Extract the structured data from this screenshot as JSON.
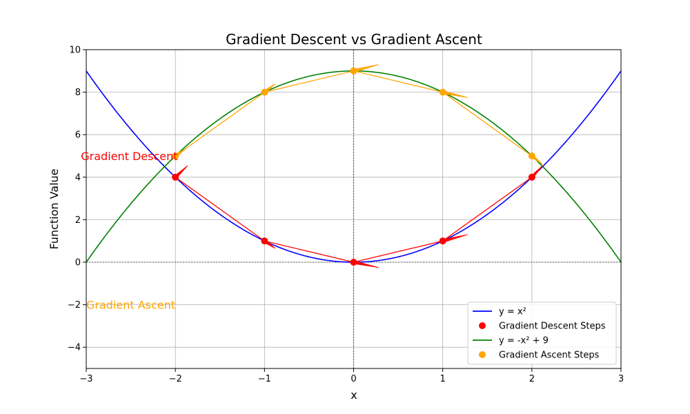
{
  "chart_data": {
    "type": "line",
    "title": "Gradient Descent vs Gradient Ascent",
    "xlabel": "x",
    "ylabel": "Function Value",
    "xlim": [
      -3,
      3
    ],
    "ylim": [
      -5,
      10
    ],
    "x_ticks": [
      -3,
      -2,
      -1,
      0,
      1,
      2,
      3
    ],
    "y_ticks": [
      -4,
      -2,
      0,
      2,
      4,
      6,
      8,
      10
    ],
    "grid": true,
    "legend_position": "lower-right",
    "colors": {
      "descent_curve": "#0000ff",
      "descent_points": "#ff0000",
      "ascent_curve": "#008000",
      "ascent_points": "#ffa500"
    },
    "curves": [
      {
        "name": "y = x²",
        "function": "x^2",
        "color": "#0000ff"
      },
      {
        "name": "y = -x² + 9",
        "function": "-x^2 + 9",
        "color": "#008000"
      }
    ],
    "scatter": [
      {
        "name": "Gradient Descent Steps",
        "color": "#ff0000",
        "x": [
          -2,
          -1,
          0,
          1,
          2
        ],
        "y": [
          4,
          1,
          0,
          1,
          4
        ]
      },
      {
        "name": "Gradient Ascent Steps",
        "color": "#ffa500",
        "x": [
          -2,
          -1,
          0,
          1,
          2
        ],
        "y": [
          5,
          8,
          9,
          8,
          5
        ]
      }
    ],
    "step_lines": [
      {
        "color": "#ff0000",
        "x": [
          -2,
          -1,
          0,
          1,
          2
        ],
        "y": [
          4,
          1,
          0,
          1,
          4
        ]
      },
      {
        "color": "#ffa500",
        "x": [
          -2,
          -1,
          0,
          1,
          2
        ],
        "y": [
          5,
          8,
          9,
          8,
          5
        ]
      }
    ],
    "arrows": [
      {
        "color": "#ff0000",
        "from": [
          -2,
          4
        ],
        "to": [
          -1.86,
          4.55
        ]
      },
      {
        "color": "#ff0000",
        "from": [
          -1,
          1
        ],
        "to": [
          -0.88,
          0.65
        ]
      },
      {
        "color": "#ff0000",
        "from": [
          0,
          0
        ],
        "to": [
          0.28,
          -0.25
        ]
      },
      {
        "color": "#ff0000",
        "from": [
          1,
          1
        ],
        "to": [
          1.28,
          1.3
        ]
      },
      {
        "color": "#ff0000",
        "from": [
          2,
          4
        ],
        "to": [
          2.12,
          4.55
        ]
      },
      {
        "color": "#ffa500",
        "from": [
          -2,
          5
        ],
        "to": [
          -1.88,
          5.35
        ]
      },
      {
        "color": "#ffa500",
        "from": [
          -1,
          8
        ],
        "to": [
          -0.88,
          8.4
        ]
      },
      {
        "color": "#ffa500",
        "from": [
          0,
          9
        ],
        "to": [
          0.28,
          9.3
        ]
      },
      {
        "color": "#ffa500",
        "from": [
          1,
          8
        ],
        "to": [
          1.28,
          7.75
        ]
      },
      {
        "color": "#ffa500",
        "from": [
          2,
          5
        ],
        "to": [
          2.12,
          4.6
        ]
      }
    ],
    "annotations": [
      {
        "text": "Gradient Descent",
        "x": -3.06,
        "y": 5,
        "color": "#ff0000"
      },
      {
        "text": "Gradient Ascent",
        "x": -3.0,
        "y": -2,
        "color": "#ffa500"
      }
    ],
    "legend": [
      {
        "label": "y = x²",
        "kind": "line",
        "color": "#0000ff"
      },
      {
        "label": "Gradient Descent Steps",
        "kind": "marker",
        "color": "#ff0000"
      },
      {
        "label": "y = -x² + 9",
        "kind": "line",
        "color": "#008000"
      },
      {
        "label": "Gradient Ascent Steps",
        "kind": "marker",
        "color": "#ffa500"
      }
    ]
  }
}
